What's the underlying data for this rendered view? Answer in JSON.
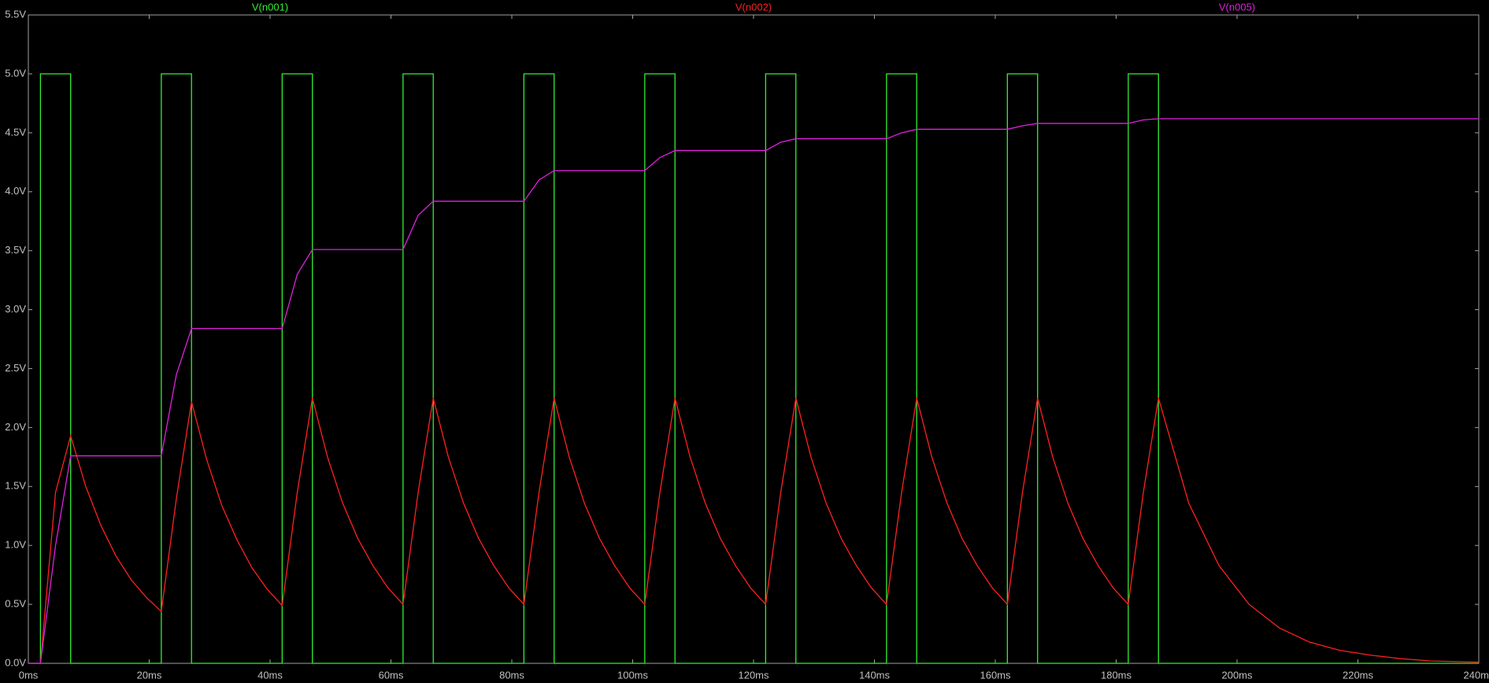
{
  "chart_data": {
    "type": "line",
    "series": [
      {
        "name": "V(n001)",
        "color": "#33ee33",
        "x": [
          0,
          2,
          2,
          7,
          7,
          22,
          22,
          27,
          27,
          42,
          42,
          47,
          47,
          62,
          62,
          67,
          67,
          82,
          82,
          87,
          87,
          102,
          102,
          107,
          107,
          122,
          122,
          127,
          127,
          142,
          142,
          147,
          147,
          162,
          162,
          167,
          167,
          182,
          182,
          187,
          187,
          240
        ],
        "values": [
          0,
          0,
          5,
          5,
          0,
          0,
          5,
          5,
          0,
          0,
          5,
          5,
          0,
          0,
          5,
          5,
          0,
          0,
          5,
          5,
          0,
          0,
          5,
          5,
          0,
          0,
          5,
          5,
          0,
          0,
          5,
          5,
          0,
          0,
          5,
          5,
          0,
          0,
          5,
          5,
          0,
          0
        ]
      },
      {
        "name": "V(n002)",
        "color": "#ff2020",
        "x": [
          0,
          2,
          4.5,
          7,
          9.5,
          12,
          14.5,
          17,
          19.5,
          22,
          24.5,
          27,
          29.5,
          32,
          34.5,
          37,
          39.5,
          42,
          44.5,
          47,
          49.5,
          52,
          54.5,
          57,
          59.5,
          62,
          64.5,
          67,
          69.5,
          72,
          74.5,
          77,
          79.5,
          82,
          84.5,
          87,
          89.5,
          92,
          94.5,
          97,
          99.5,
          102,
          104.5,
          107,
          109.5,
          112,
          114.5,
          117,
          119.5,
          122,
          124.5,
          127,
          129.5,
          132,
          134.5,
          137,
          139.5,
          142,
          144.5,
          147,
          149.5,
          152,
          154.5,
          157,
          159.5,
          162,
          164.5,
          167,
          169.5,
          172,
          174.5,
          177,
          179.5,
          182,
          184.5,
          187,
          192,
          197,
          202,
          207,
          212,
          217,
          222,
          227,
          232,
          240
        ],
        "values": [
          0,
          0,
          1.45,
          1.93,
          1.5,
          1.17,
          0.91,
          0.71,
          0.56,
          0.44,
          1.4,
          2.22,
          1.73,
          1.34,
          1.05,
          0.81,
          0.63,
          0.49,
          1.45,
          2.25,
          1.75,
          1.36,
          1.06,
          0.83,
          0.64,
          0.5,
          1.45,
          2.25,
          1.75,
          1.36,
          1.06,
          0.83,
          0.64,
          0.5,
          1.45,
          2.25,
          1.75,
          1.36,
          1.06,
          0.83,
          0.64,
          0.5,
          1.45,
          2.25,
          1.75,
          1.36,
          1.06,
          0.83,
          0.64,
          0.5,
          1.45,
          2.25,
          1.75,
          1.36,
          1.06,
          0.83,
          0.64,
          0.5,
          1.45,
          2.25,
          1.75,
          1.36,
          1.06,
          0.83,
          0.64,
          0.5,
          1.45,
          2.25,
          1.75,
          1.36,
          1.06,
          0.83,
          0.64,
          0.5,
          1.45,
          2.25,
          1.36,
          0.83,
          0.5,
          0.3,
          0.18,
          0.11,
          0.07,
          0.04,
          0.02,
          0.01
        ]
      },
      {
        "name": "V(n005)",
        "color": "#e020e0",
        "x": [
          0,
          2,
          4.5,
          7,
          22,
          24.5,
          27,
          42,
          44.5,
          47,
          62,
          64.5,
          67,
          82,
          84.5,
          87,
          102,
          104.5,
          107,
          122,
          124.5,
          127,
          142,
          144.5,
          147,
          162,
          164.5,
          167,
          182,
          184.5,
          187,
          240
        ],
        "values": [
          0,
          0,
          1.0,
          1.76,
          1.76,
          2.45,
          2.84,
          2.84,
          3.3,
          3.51,
          3.51,
          3.8,
          3.92,
          3.92,
          4.1,
          4.18,
          4.18,
          4.29,
          4.35,
          4.35,
          4.42,
          4.45,
          4.45,
          4.5,
          4.53,
          4.53,
          4.56,
          4.58,
          4.58,
          4.61,
          4.62,
          4.62
        ]
      }
    ],
    "xlim": [
      0,
      240
    ],
    "xticks": [
      {
        "value": 0,
        "label": "0ms"
      },
      {
        "value": 20,
        "label": "20ms"
      },
      {
        "value": 40,
        "label": "40ms"
      },
      {
        "value": 60,
        "label": "60ms"
      },
      {
        "value": 80,
        "label": "80ms"
      },
      {
        "value": 100,
        "label": "100ms"
      },
      {
        "value": 120,
        "label": "120ms"
      },
      {
        "value": 140,
        "label": "140ms"
      },
      {
        "value": 160,
        "label": "160ms"
      },
      {
        "value": 180,
        "label": "180ms"
      },
      {
        "value": 200,
        "label": "200ms"
      },
      {
        "value": 220,
        "label": "220ms"
      },
      {
        "value": 240,
        "label": "240ms"
      }
    ],
    "ylim": [
      0,
      5.5
    ],
    "yticks": [
      {
        "value": 0,
        "label": "0.0V"
      },
      {
        "value": 0.5,
        "label": "0.5V"
      },
      {
        "value": 1,
        "label": "1.0V"
      },
      {
        "value": 1.5,
        "label": "1.5V"
      },
      {
        "value": 2,
        "label": "2.0V"
      },
      {
        "value": 2.5,
        "label": "2.5V"
      },
      {
        "value": 3,
        "label": "3.0V"
      },
      {
        "value": 3.5,
        "label": "3.5V"
      },
      {
        "value": 4,
        "label": "4.0V"
      },
      {
        "value": 4.5,
        "label": "4.5V"
      },
      {
        "value": 5,
        "label": "5.0V"
      },
      {
        "value": 5.5,
        "label": "5.5V"
      }
    ],
    "grid": false
  }
}
